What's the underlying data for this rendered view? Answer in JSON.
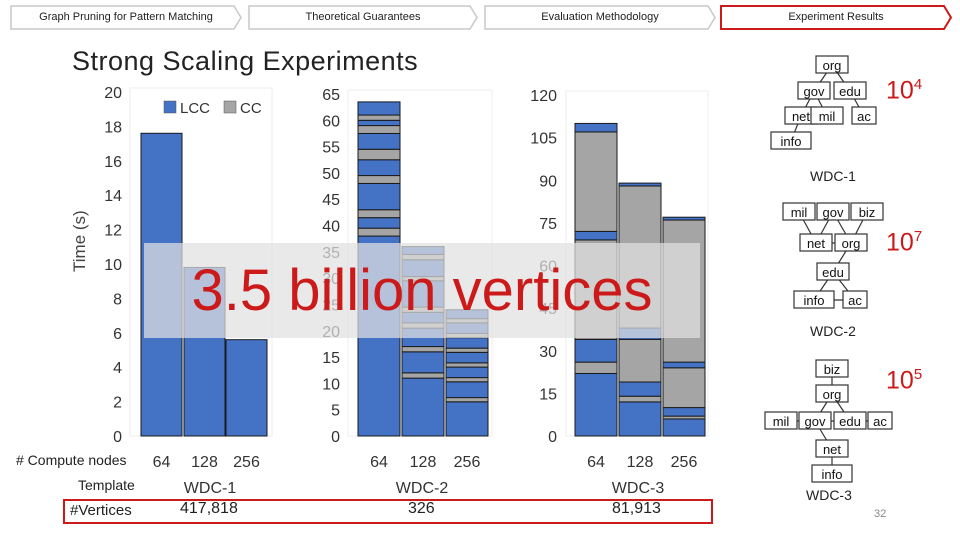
{
  "nav": [
    {
      "label": "Graph Pruning for Pattern Matching"
    },
    {
      "label": "Theoretical Guarantees"
    },
    {
      "label": "Evaluation Methodology"
    },
    {
      "label": "Experiment Results"
    }
  ],
  "colors": {
    "accent": "#cc1a1a",
    "lcc": "#4472c4",
    "cc": "#a5a5a5"
  },
  "title": "Strong Scaling Experiments",
  "overlay_text": "3.5 billion vertices",
  "y_axis_label": "Time (s)",
  "row_labels": {
    "compute_nodes": "# Compute nodes",
    "template": "Template",
    "vertices": "#Vertices"
  },
  "page_number": "32",
  "chart_data": [
    {
      "type": "bar",
      "title": "",
      "categories": [
        "64",
        "128",
        "256"
      ],
      "ylim": [
        0,
        20
      ],
      "yticks": [
        "0",
        "2",
        "4",
        "6",
        "8",
        "10",
        "12",
        "14",
        "16",
        "18",
        "20"
      ],
      "legend": [
        "LCC",
        "CC"
      ],
      "template": "WDC-1",
      "vertices": "417,818",
      "stacks": [
        [
          {
            "s": "LCC",
            "v": 17.6
          }
        ],
        [
          {
            "s": "LCC",
            "v": 9.8
          }
        ],
        [
          {
            "s": "LCC",
            "v": 5.6
          }
        ]
      ]
    },
    {
      "type": "bar",
      "title": "",
      "categories": [
        "64",
        "128",
        "256"
      ],
      "ylim": [
        0,
        65
      ],
      "yticks": [
        "0",
        "5",
        "10",
        "15",
        "20",
        "25",
        "30",
        "35",
        "40",
        "45",
        "50",
        "55",
        "60",
        "65"
      ],
      "template": "WDC-2",
      "vertices": "326",
      "stacks": [
        [
          {
            "s": "LCC",
            "v": 38
          },
          {
            "s": "CC",
            "v": 1.5
          },
          {
            "s": "LCC",
            "v": 2
          },
          {
            "s": "CC",
            "v": 1.5
          },
          {
            "s": "LCC",
            "v": 5
          },
          {
            "s": "CC",
            "v": 1.5
          },
          {
            "s": "LCC",
            "v": 3
          },
          {
            "s": "CC",
            "v": 2
          },
          {
            "s": "LCC",
            "v": 3
          },
          {
            "s": "CC",
            "v": 1.5
          },
          {
            "s": "LCC",
            "v": 1
          },
          {
            "s": "CC",
            "v": 1
          },
          {
            "s": "LCC",
            "v": 2.5
          }
        ],
        [
          {
            "s": "LCC",
            "v": 11
          },
          {
            "s": "CC",
            "v": 1
          },
          {
            "s": "LCC",
            "v": 4
          },
          {
            "s": "CC",
            "v": 1
          },
          {
            "s": "LCC",
            "v": 3.5
          },
          {
            "s": "CC",
            "v": 1
          },
          {
            "s": "LCC",
            "v": 2
          },
          {
            "s": "CC",
            "v": 1
          },
          {
            "s": "LCC",
            "v": 5
          },
          {
            "s": "CC",
            "v": 0.8
          },
          {
            "s": "LCC",
            "v": 3.2
          },
          {
            "s": "CC",
            "v": 1
          },
          {
            "s": "LCC",
            "v": 1.5
          }
        ],
        [
          {
            "s": "LCC",
            "v": 6.5
          },
          {
            "s": "CC",
            "v": 0.8
          },
          {
            "s": "LCC",
            "v": 3
          },
          {
            "s": "CC",
            "v": 0.8
          },
          {
            "s": "LCC",
            "v": 2
          },
          {
            "s": "CC",
            "v": 0.8
          },
          {
            "s": "LCC",
            "v": 2
          },
          {
            "s": "CC",
            "v": 0.8
          },
          {
            "s": "LCC",
            "v": 2
          },
          {
            "s": "CC",
            "v": 0.8
          },
          {
            "s": "LCC",
            "v": 2
          },
          {
            "s": "CC",
            "v": 0.8
          },
          {
            "s": "LCC",
            "v": 1.7
          }
        ]
      ]
    },
    {
      "type": "bar",
      "title": "",
      "categories": [
        "64",
        "128",
        "256"
      ],
      "ylim": [
        0,
        120
      ],
      "yticks": [
        "0",
        "15",
        "30",
        "45",
        "60",
        "75",
        "90",
        "105",
        "120"
      ],
      "template": "WDC-3",
      "vertices": "81,913",
      "stacks": [
        [
          {
            "s": "LCC",
            "v": 22
          },
          {
            "s": "CC",
            "v": 4
          },
          {
            "s": "LCC",
            "v": 8
          },
          {
            "s": "CC",
            "v": 35
          },
          {
            "s": "LCC",
            "v": 3
          },
          {
            "s": "CC",
            "v": 35
          },
          {
            "s": "LCC",
            "v": 3
          }
        ],
        [
          {
            "s": "LCC",
            "v": 12
          },
          {
            "s": "CC",
            "v": 2
          },
          {
            "s": "LCC",
            "v": 5
          },
          {
            "s": "CC",
            "v": 15
          },
          {
            "s": "LCC",
            "v": 4
          },
          {
            "s": "CC",
            "v": 50
          },
          {
            "s": "LCC",
            "v": 1
          }
        ],
        [
          {
            "s": "LCC",
            "v": 6
          },
          {
            "s": "CC",
            "v": 1
          },
          {
            "s": "LCC",
            "v": 3
          },
          {
            "s": "CC",
            "v": 14
          },
          {
            "s": "LCC",
            "v": 2
          },
          {
            "s": "CC",
            "v": 50
          },
          {
            "s": "LCC",
            "v": 1
          }
        ]
      ]
    }
  ],
  "templates": [
    {
      "name": "WDC-1",
      "count_base": "10",
      "count_exp": "4",
      "nodes": [
        "org",
        "gov",
        "edu",
        "net",
        "mil",
        "ac",
        "info"
      ],
      "edges": [
        [
          "org",
          "gov"
        ],
        [
          "org",
          "edu"
        ],
        [
          "gov",
          "net"
        ],
        [
          "gov",
          "mil"
        ],
        [
          "edu",
          "ac"
        ],
        [
          "net",
          "info"
        ]
      ]
    },
    {
      "name": "WDC-2",
      "count_base": "10",
      "count_exp": "7",
      "nodes": [
        "mil",
        "gov",
        "biz",
        "net",
        "org",
        "edu",
        "info",
        "ac"
      ],
      "edges": [
        [
          "mil",
          "net"
        ],
        [
          "gov",
          "net"
        ],
        [
          "gov",
          "org"
        ],
        [
          "biz",
          "org"
        ],
        [
          "net",
          "org"
        ],
        [
          "org",
          "edu"
        ],
        [
          "edu",
          "info"
        ],
        [
          "edu",
          "ac"
        ],
        [
          "info",
          "ac"
        ]
      ]
    },
    {
      "name": "WDC-3",
      "count_base": "10",
      "count_exp": "5",
      "nodes": [
        "biz",
        "org",
        "mil",
        "gov",
        "edu",
        "ac",
        "net",
        "info"
      ],
      "edges": [
        [
          "biz",
          "org"
        ],
        [
          "org",
          "gov"
        ],
        [
          "org",
          "edu"
        ],
        [
          "mil",
          "gov"
        ],
        [
          "gov",
          "edu"
        ],
        [
          "edu",
          "ac"
        ],
        [
          "gov",
          "net"
        ],
        [
          "net",
          "info"
        ]
      ]
    }
  ]
}
